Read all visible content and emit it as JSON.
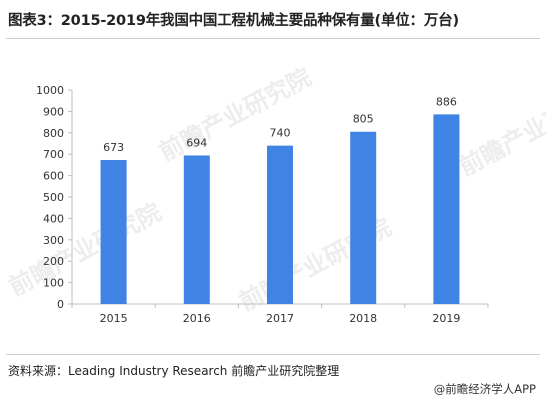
{
  "title": "图表3：2015-2019年我国中国工程机械主要品种保有量(单位：万台)",
  "source": "资料来源：Leading Industry Research 前瞻产业研究院整理",
  "brand": "@前瞻经济学人APP",
  "watermark": "前瞻产业研究院",
  "colors": {
    "bar": "#3f83e4",
    "axis": "#bfbfbf",
    "text": "#333333"
  },
  "chart_data": {
    "type": "bar",
    "categories": [
      "2015",
      "2016",
      "2017",
      "2018",
      "2019"
    ],
    "values": [
      673,
      694,
      740,
      805,
      886
    ],
    "ylim": [
      0,
      1000
    ],
    "yticks": [
      0,
      100,
      200,
      300,
      400,
      500,
      600,
      700,
      800,
      900,
      1000
    ],
    "grid": false,
    "legend": "none"
  }
}
